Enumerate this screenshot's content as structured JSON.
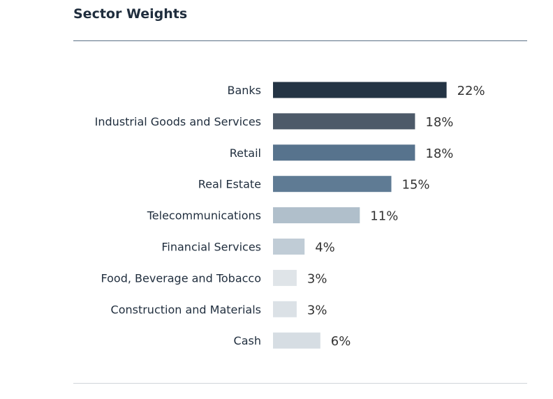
{
  "title": "Sector Weights",
  "chart_data": {
    "type": "bar",
    "orientation": "horizontal",
    "title": "Sector Weights",
    "categories": [
      "Banks",
      "Industrial Goods and Services",
      "Retail",
      "Real Estate",
      "Telecommunications",
      "Financial Services",
      "Food, Beverage and Tobacco",
      "Construction and Materials",
      "Cash"
    ],
    "values": [
      22,
      18,
      18,
      15,
      11,
      4,
      3,
      3,
      6
    ],
    "value_labels": [
      "22%",
      "18%",
      "18%",
      "15%",
      "11%",
      "4%",
      "3%",
      "3%",
      "6%"
    ],
    "colors": [
      "#243444",
      "#4d5a69",
      "#57738d",
      "#5f7b94",
      "#b0bfcb",
      "#c0ccd6",
      "#dfe4e8",
      "#dbe1e6",
      "#d6dde3"
    ],
    "grid": false,
    "legend": "none"
  }
}
